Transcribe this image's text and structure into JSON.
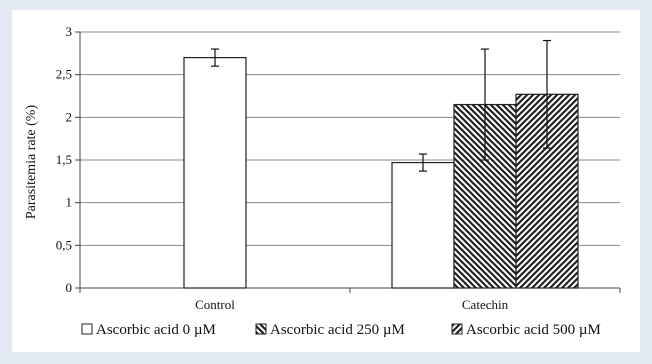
{
  "chart_data": {
    "type": "bar",
    "categories": [
      "Control",
      "Catechin"
    ],
    "ylabel": "Parasitemia rate (%)",
    "xlabel": "",
    "ylim": [
      0,
      3
    ],
    "yticks": [
      0,
      0.5,
      1,
      1.5,
      2,
      2.5,
      3
    ],
    "ytick_labels": [
      "0",
      "0,5",
      "1",
      "1,5",
      "2",
      "2,5",
      "3"
    ],
    "grid": "horizontal",
    "legend_position": "bottom",
    "series": [
      {
        "name": "Ascorbic acid 0 µM",
        "pattern": "none",
        "values": [
          2.7,
          1.47
        ],
        "errors": [
          0.1,
          0.1
        ]
      },
      {
        "name": "Ascorbic acid 250 µM",
        "pattern": "backslash-hatch",
        "values": [
          null,
          2.15
        ],
        "errors": [
          null,
          0.65
        ]
      },
      {
        "name": "Ascorbic acid 500 µM",
        "pattern": "slash-hatch",
        "values": [
          null,
          2.27
        ],
        "errors": [
          null,
          0.63
        ]
      }
    ]
  }
}
